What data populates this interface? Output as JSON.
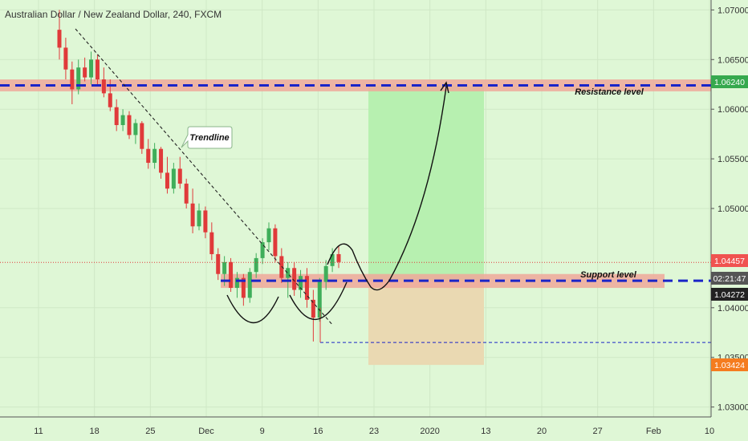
{
  "header": {
    "title": "Australian Dollar / New Zealand Dollar, 240, FXCM"
  },
  "colors": {
    "background": "#dff7d6",
    "up": "#3fae5a",
    "down": "#e03a3a",
    "zone": "#f0a89a",
    "level_line": "#1a25c8",
    "target_area": "#b7f0b0",
    "stop_area": "#ead9b2",
    "current_price_badge": "#f05350",
    "stop_badge": "#f57c1f",
    "resistance_badge": "#36a94e"
  },
  "chart_data": {
    "type": "candlestick",
    "title": "Australian Dollar / New Zealand Dollar, 240, FXCM",
    "ylim": [
      1.029,
      1.071
    ],
    "price_ticks": [
      "1.07000",
      "1.06500",
      "1.06000",
      "1.05500",
      "1.05000",
      "1.04000",
      "1.03500",
      "1.03000"
    ],
    "time_labels": [
      "11",
      "18",
      "25",
      "Dec",
      "9",
      "16",
      "23",
      "2020",
      "13",
      "20",
      "27",
      "Feb",
      "10"
    ],
    "candles_ohlc": [
      [
        1.068,
        1.07,
        1.065,
        1.0662
      ],
      [
        1.0662,
        1.0672,
        1.063,
        1.064
      ],
      [
        1.064,
        1.0648,
        1.0605,
        1.062
      ],
      [
        1.062,
        1.065,
        1.0615,
        1.0642
      ],
      [
        1.0642,
        1.0652,
        1.0628,
        1.0632
      ],
      [
        1.0632,
        1.0658,
        1.0625,
        1.065
      ],
      [
        1.065,
        1.0655,
        1.0625,
        1.063
      ],
      [
        1.063,
        1.0642,
        1.0612,
        1.0616
      ],
      [
        1.0616,
        1.063,
        1.0598,
        1.0602
      ],
      [
        1.0602,
        1.061,
        1.0578,
        1.0584
      ],
      [
        1.0584,
        1.06,
        1.0578,
        1.0594
      ],
      [
        1.0594,
        1.0598,
        1.057,
        1.0574
      ],
      [
        1.0574,
        1.059,
        1.0565,
        1.0586
      ],
      [
        1.0586,
        1.0588,
        1.0555,
        1.056
      ],
      [
        1.056,
        1.057,
        1.054,
        1.0546
      ],
      [
        1.0546,
        1.0566,
        1.054,
        1.056
      ],
      [
        1.056,
        1.0562,
        1.053,
        1.0536
      ],
      [
        1.0536,
        1.0552,
        1.0515,
        1.052
      ],
      [
        1.052,
        1.0546,
        1.0515,
        1.054
      ],
      [
        1.054,
        1.0552,
        1.052,
        1.0525
      ],
      [
        1.0525,
        1.053,
        1.05,
        1.0505
      ],
      [
        1.0505,
        1.052,
        1.0475,
        1.0482
      ],
      [
        1.0482,
        1.0505,
        1.0478,
        1.0498
      ],
      [
        1.0498,
        1.0502,
        1.047,
        1.0476
      ],
      [
        1.0476,
        1.0486,
        1.0448,
        1.0454
      ],
      [
        1.0454,
        1.046,
        1.0428,
        1.0434
      ],
      [
        1.0434,
        1.0452,
        1.0422,
        1.0446
      ],
      [
        1.0446,
        1.045,
        1.0416,
        1.042
      ],
      [
        1.042,
        1.0436,
        1.041,
        1.043
      ],
      [
        1.043,
        1.0434,
        1.0402,
        1.041
      ],
      [
        1.041,
        1.044,
        1.0405,
        1.0436
      ],
      [
        1.0436,
        1.0455,
        1.043,
        1.045
      ],
      [
        1.045,
        1.047,
        1.0444,
        1.0466
      ],
      [
        1.0466,
        1.0486,
        1.0458,
        1.048
      ],
      [
        1.048,
        1.0484,
        1.0446,
        1.0452
      ],
      [
        1.0452,
        1.046,
        1.0425,
        1.043
      ],
      [
        1.043,
        1.0446,
        1.041,
        1.044
      ],
      [
        1.044,
        1.0446,
        1.0412,
        1.0418
      ],
      [
        1.0418,
        1.0438,
        1.041,
        1.0432
      ],
      [
        1.0432,
        1.044,
        1.04,
        1.0408
      ],
      [
        1.0408,
        1.0418,
        1.0366,
        1.039
      ],
      [
        1.039,
        1.043,
        1.0386,
        1.0426
      ],
      [
        1.0426,
        1.0448,
        1.0418,
        1.0442
      ],
      [
        1.0442,
        1.046,
        1.0436,
        1.0454
      ],
      [
        1.0454,
        1.0462,
        1.044,
        1.0446
      ]
    ],
    "current_price": 1.04457,
    "levels": {
      "resistance": {
        "label": "Resistance level",
        "price": 1.0624,
        "zone": [
          1.0618,
          1.063
        ]
      },
      "support": {
        "label": "Support level",
        "price": 1.04272,
        "zone": [
          1.042,
          1.0434
        ]
      },
      "stop": {
        "price": 1.03424,
        "line_price": 1.0365
      }
    },
    "position": {
      "target_price": 1.0624,
      "entry_price": 1.04272,
      "stop_price": 1.03424
    },
    "annotations": {
      "trendline_label": "Trendline",
      "countdown": "02:21:47"
    }
  }
}
